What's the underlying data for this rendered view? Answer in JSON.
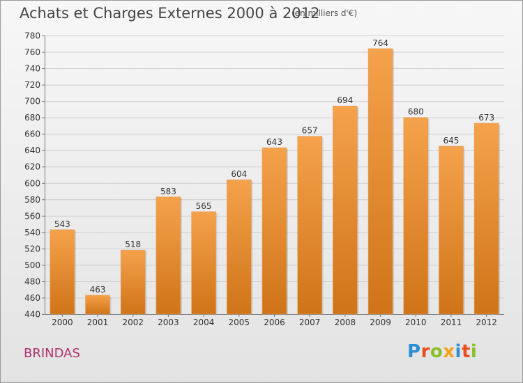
{
  "header": {
    "title": "Achats et Charges Externes 2000 à 2012",
    "subtitle": "(en milliers d'€)"
  },
  "footer": {
    "location": "BRINDAS",
    "logo_text": "Proxiti"
  },
  "colors": {
    "bar_top": "#f5a24c",
    "bar_bottom": "#cf7418",
    "gridline": "#cfcfcf",
    "location_text": "#b0306b"
  },
  "chart_data": {
    "type": "bar",
    "categories": [
      "2000",
      "2001",
      "2002",
      "2003",
      "2004",
      "2005",
      "2006",
      "2007",
      "2008",
      "2009",
      "2010",
      "2011",
      "2012"
    ],
    "values": [
      543,
      463,
      518,
      583,
      565,
      604,
      643,
      657,
      694,
      764,
      680,
      645,
      673
    ],
    "title": "Achats et Charges Externes 2000 à 2012",
    "unit": "(en milliers d'€)",
    "ylim": [
      440,
      780
    ],
    "yticks": [
      440,
      460,
      480,
      500,
      520,
      540,
      560,
      580,
      600,
      620,
      640,
      660,
      680,
      700,
      720,
      740,
      760,
      780
    ],
    "grid": true,
    "data_labels": true
  }
}
